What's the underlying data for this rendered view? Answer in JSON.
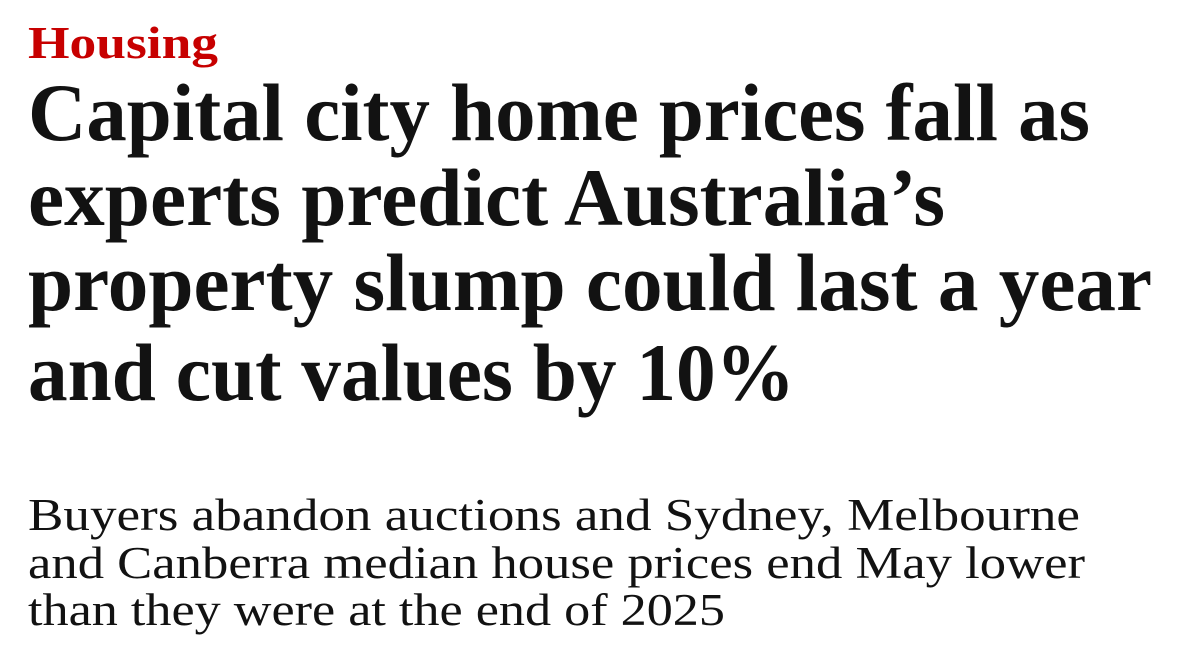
{
  "kicker": "Housing",
  "headline": {
    "lines": [
      "Capital city home prices fall as",
      "experts predict Australia’s",
      "property slump could last a year",
      "and cut values by 10%"
    ]
  },
  "standfirst": {
    "lines": [
      "Buyers abandon auctions and Sydney, Melbourne",
      "and Canberra median house prices end May lower",
      "than they were at the end of 2025"
    ]
  }
}
